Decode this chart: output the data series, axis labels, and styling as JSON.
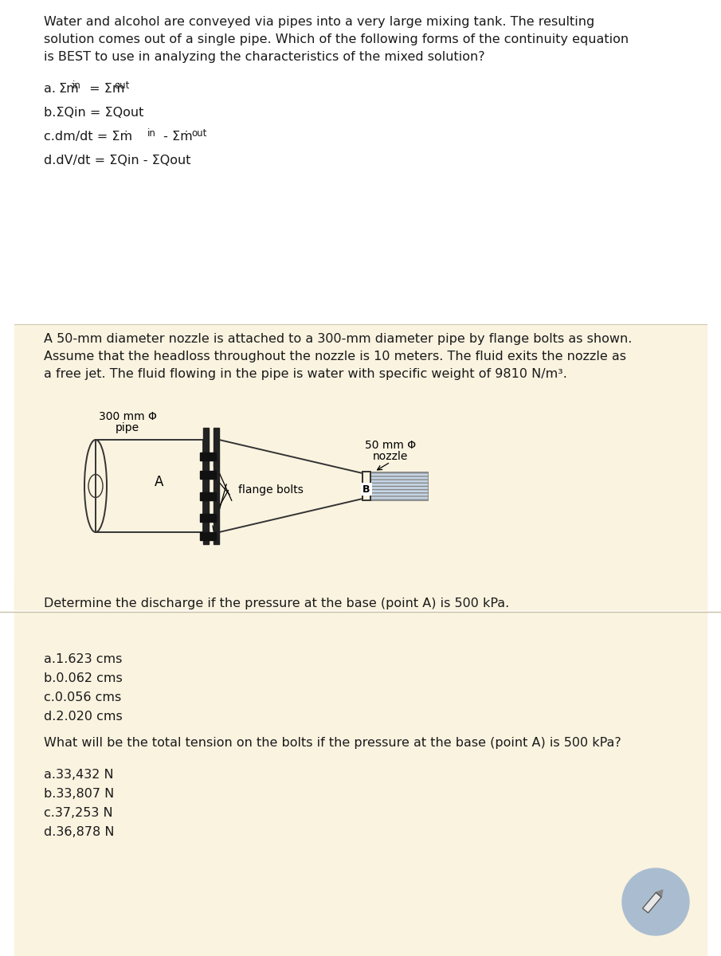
{
  "bg_color": "#ffffff",
  "beige_bg": "#faf3e0",
  "text_color": "#1a1a1a",
  "q1_text_line1": "Water and alcohol are conveyed via pipes into a very large mixing tank. The resulting",
  "q1_text_line2": "solution comes out of a single pipe. Which of the following forms of the continuity equation",
  "q1_text_line3": "is BEST to use in analyzing the characteristics of the mixed solution?",
  "q1_opt_a_pre": "a.",
  "q1_opt_a_sigma": "Σṁ",
  "q1_opt_a_sub1": "in",
  "q1_opt_a_mid": " = Σṁ",
  "q1_opt_a_sub2": "out",
  "q1_opt_b": "b.ΣQin = ΣQout",
  "q1_opt_c_pre": "c.dm/dt = Σṁ",
  "q1_opt_c_sub1": "in",
  "q1_opt_c_mid": " - Σṁ",
  "q1_opt_c_sub2": "out",
  "q1_opt_d": "d.dV/dt = ΣQin - ΣQout",
  "q2_text_line1": "A 50-mm diameter nozzle is attached to a 300-mm diameter pipe by flange bolts as shown.",
  "q2_text_line2": "Assume that the headloss throughout the nozzle is 10 meters. The fluid exits the nozzle as",
  "q2_text_line3": "a free jet. The fluid flowing in the pipe is water with specific weight of 9810 N/m³.",
  "diag_pipe_label": "300 mm Φ\npipe",
  "diag_nozzle_label": "50 mm Φ\nnozzle",
  "diag_A": "A",
  "diag_B": "B",
  "diag_bolts": "flange bolts",
  "q2_sub1": "Determine the discharge if the pressure at the base (point A) is 500 kPa.",
  "q2_opts1": [
    "a.1.623 cms",
    "b.0.062 cms",
    "c.0.056 cms",
    "d.2.020 cms"
  ],
  "q2_sub2": "What will be the total tension on the bolts if the pressure at the base (point A) is 500 kPa?",
  "q2_opts2": [
    "a.33,432 N",
    "b.33,807 N",
    "c.37,253 N",
    "d.36,878 N"
  ],
  "fs": 11.5,
  "fs_small": 8.5
}
